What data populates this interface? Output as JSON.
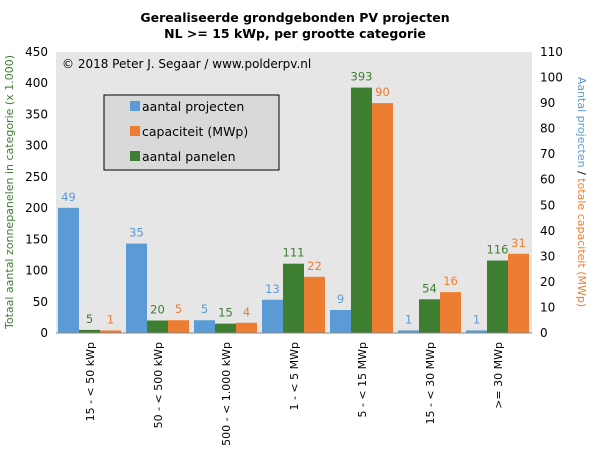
{
  "chart_data": {
    "type": "bar",
    "title": "Gerealiseerde grondgebonden PV projecten",
    "subtitle": "NL >= 15 kWp, per grootte categorie",
    "copyright": "© 2018 Peter J. Segaar / www.polderpv.nl",
    "categories": [
      "15 - < 50 kWp",
      "50 - < 500 kWp",
      "500 - < 1.000 kWp",
      "1 - < 5 MWp",
      "5 - < 15 MWp",
      "15 - < 30 MWp",
      ">= 30 MWp"
    ],
    "y_left": {
      "label": "Totaal aantal zonnepanelen in categorie (x 1.000)",
      "range": [
        0,
        450
      ],
      "ticks": [
        "0",
        "50",
        "100",
        "150",
        "200",
        "250",
        "300",
        "350",
        "400",
        "450"
      ]
    },
    "y_right": {
      "label_part1": "Aantal projecten",
      "label_sep": " / ",
      "label_part2": "totale capaciteit (MWp)",
      "range": [
        0,
        110
      ],
      "ticks": [
        "0",
        "10",
        "20",
        "30",
        "40",
        "50",
        "60",
        "70",
        "80",
        "90",
        "100",
        "110"
      ]
    },
    "series": [
      {
        "name": "aantal projecten",
        "color": "#5b9bd5",
        "axis": "right",
        "values": [
          49,
          35,
          5,
          13,
          9,
          1,
          1
        ]
      },
      {
        "name": "aantal panelen",
        "color": "#3e7f32",
        "axis": "left",
        "values": [
          5,
          20,
          15,
          111,
          393,
          54,
          116
        ]
      },
      {
        "name": "capaciteit (MWp)",
        "color": "#ed7d31",
        "axis": "right",
        "values": [
          1,
          5,
          4,
          22,
          90,
          16,
          31
        ]
      }
    ],
    "legend": {
      "position": "top-left",
      "entries": [
        "aantal projecten",
        "capaciteit (MWp)",
        "aantal panelen"
      ]
    },
    "grid": false,
    "colors": {
      "plot_bg": "#e6e6e6",
      "legend_bg": "#d9d9d9",
      "left_axis_label": "#3e7f32",
      "right_axis_label_part1": "#5b9bd5",
      "right_axis_label_part2": "#ed7d31"
    }
  }
}
